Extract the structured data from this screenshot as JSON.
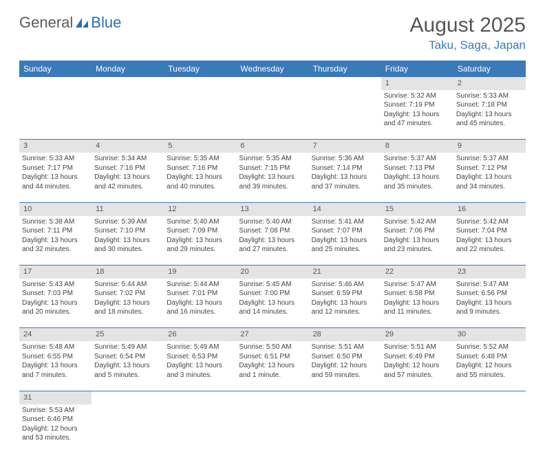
{
  "logo": {
    "part1": "General",
    "part2": "Blue"
  },
  "title": "August 2025",
  "location": "Taku, Saga, Japan",
  "colors": {
    "header_bg": "#3b7ab8",
    "header_text": "#ffffff",
    "daynum_bg": "#e4e4e4",
    "border": "#3b7ab8",
    "location_text": "#3b7ab8",
    "title_text": "#555555",
    "body_text": "#444444"
  },
  "day_headers": [
    "Sunday",
    "Monday",
    "Tuesday",
    "Wednesday",
    "Thursday",
    "Friday",
    "Saturday"
  ],
  "weeks": [
    {
      "nums": [
        "",
        "",
        "",
        "",
        "",
        "1",
        "2"
      ],
      "cells": [
        null,
        null,
        null,
        null,
        null,
        {
          "sunrise": "5:32 AM",
          "sunset": "7:19 PM",
          "daylight": "13 hours and 47 minutes."
        },
        {
          "sunrise": "5:33 AM",
          "sunset": "7:18 PM",
          "daylight": "13 hours and 45 minutes."
        }
      ]
    },
    {
      "nums": [
        "3",
        "4",
        "5",
        "6",
        "7",
        "8",
        "9"
      ],
      "cells": [
        {
          "sunrise": "5:33 AM",
          "sunset": "7:17 PM",
          "daylight": "13 hours and 44 minutes."
        },
        {
          "sunrise": "5:34 AM",
          "sunset": "7:16 PM",
          "daylight": "13 hours and 42 minutes."
        },
        {
          "sunrise": "5:35 AM",
          "sunset": "7:16 PM",
          "daylight": "13 hours and 40 minutes."
        },
        {
          "sunrise": "5:35 AM",
          "sunset": "7:15 PM",
          "daylight": "13 hours and 39 minutes."
        },
        {
          "sunrise": "5:36 AM",
          "sunset": "7:14 PM",
          "daylight": "13 hours and 37 minutes."
        },
        {
          "sunrise": "5:37 AM",
          "sunset": "7:13 PM",
          "daylight": "13 hours and 35 minutes."
        },
        {
          "sunrise": "5:37 AM",
          "sunset": "7:12 PM",
          "daylight": "13 hours and 34 minutes."
        }
      ]
    },
    {
      "nums": [
        "10",
        "11",
        "12",
        "13",
        "14",
        "15",
        "16"
      ],
      "cells": [
        {
          "sunrise": "5:38 AM",
          "sunset": "7:11 PM",
          "daylight": "13 hours and 32 minutes."
        },
        {
          "sunrise": "5:39 AM",
          "sunset": "7:10 PM",
          "daylight": "13 hours and 30 minutes."
        },
        {
          "sunrise": "5:40 AM",
          "sunset": "7:09 PM",
          "daylight": "13 hours and 29 minutes."
        },
        {
          "sunrise": "5:40 AM",
          "sunset": "7:08 PM",
          "daylight": "13 hours and 27 minutes."
        },
        {
          "sunrise": "5:41 AM",
          "sunset": "7:07 PM",
          "daylight": "13 hours and 25 minutes."
        },
        {
          "sunrise": "5:42 AM",
          "sunset": "7:06 PM",
          "daylight": "13 hours and 23 minutes."
        },
        {
          "sunrise": "5:42 AM",
          "sunset": "7:04 PM",
          "daylight": "13 hours and 22 minutes."
        }
      ]
    },
    {
      "nums": [
        "17",
        "18",
        "19",
        "20",
        "21",
        "22",
        "23"
      ],
      "cells": [
        {
          "sunrise": "5:43 AM",
          "sunset": "7:03 PM",
          "daylight": "13 hours and 20 minutes."
        },
        {
          "sunrise": "5:44 AM",
          "sunset": "7:02 PM",
          "daylight": "13 hours and 18 minutes."
        },
        {
          "sunrise": "5:44 AM",
          "sunset": "7:01 PM",
          "daylight": "13 hours and 16 minutes."
        },
        {
          "sunrise": "5:45 AM",
          "sunset": "7:00 PM",
          "daylight": "13 hours and 14 minutes."
        },
        {
          "sunrise": "5:46 AM",
          "sunset": "6:59 PM",
          "daylight": "13 hours and 12 minutes."
        },
        {
          "sunrise": "5:47 AM",
          "sunset": "6:58 PM",
          "daylight": "13 hours and 11 minutes."
        },
        {
          "sunrise": "5:47 AM",
          "sunset": "6:56 PM",
          "daylight": "13 hours and 9 minutes."
        }
      ]
    },
    {
      "nums": [
        "24",
        "25",
        "26",
        "27",
        "28",
        "29",
        "30"
      ],
      "cells": [
        {
          "sunrise": "5:48 AM",
          "sunset": "6:55 PM",
          "daylight": "13 hours and 7 minutes."
        },
        {
          "sunrise": "5:49 AM",
          "sunset": "6:54 PM",
          "daylight": "13 hours and 5 minutes."
        },
        {
          "sunrise": "5:49 AM",
          "sunset": "6:53 PM",
          "daylight": "13 hours and 3 minutes."
        },
        {
          "sunrise": "5:50 AM",
          "sunset": "6:51 PM",
          "daylight": "13 hours and 1 minute."
        },
        {
          "sunrise": "5:51 AM",
          "sunset": "6:50 PM",
          "daylight": "12 hours and 59 minutes."
        },
        {
          "sunrise": "5:51 AM",
          "sunset": "6:49 PM",
          "daylight": "12 hours and 57 minutes."
        },
        {
          "sunrise": "5:52 AM",
          "sunset": "6:48 PM",
          "daylight": "12 hours and 55 minutes."
        }
      ]
    },
    {
      "nums": [
        "31",
        "",
        "",
        "",
        "",
        "",
        ""
      ],
      "cells": [
        {
          "sunrise": "5:53 AM",
          "sunset": "6:46 PM",
          "daylight": "12 hours and 53 minutes."
        },
        null,
        null,
        null,
        null,
        null,
        null
      ]
    }
  ],
  "labels": {
    "sunrise": "Sunrise: ",
    "sunset": "Sunset: ",
    "daylight": "Daylight: "
  }
}
